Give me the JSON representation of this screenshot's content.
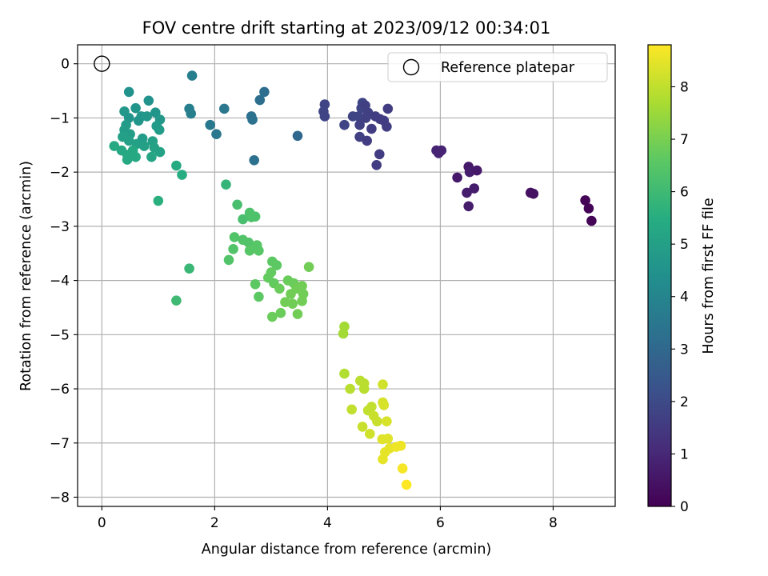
{
  "chart_data": {
    "type": "scatter",
    "title": "FOV centre drift starting at 2023/09/12 00:34:01",
    "xlabel": "Angular distance from reference (arcmin)",
    "ylabel": "Rotation from reference (arcmin)",
    "xlim": [
      -0.43,
      9.1
    ],
    "ylim": [
      -8.17,
      0.35
    ],
    "xticks": [
      0,
      2,
      4,
      6,
      8
    ],
    "yticks": [
      0,
      -1,
      -2,
      -3,
      -4,
      -5,
      -6,
      -7,
      -8
    ],
    "grid": true,
    "legend": {
      "position": "top-right",
      "entries": [
        "Reference platepar"
      ]
    },
    "reference_point": {
      "x": 0,
      "y": 0
    },
    "colorbar": {
      "label": "Hours from first FF file",
      "range": [
        0,
        8.8
      ],
      "ticks": [
        0,
        1,
        2,
        3,
        4,
        5,
        6,
        7,
        8
      ],
      "colormap": "viridis"
    },
    "points": [
      {
        "x": 8.57,
        "y": -2.52,
        "t": 0.1
      },
      {
        "x": 8.63,
        "y": -2.67,
        "t": 0.1
      },
      {
        "x": 8.68,
        "y": -2.9,
        "t": 0.1
      },
      {
        "x": 7.6,
        "y": -2.38,
        "t": 0.4
      },
      {
        "x": 7.65,
        "y": -2.4,
        "t": 0.4
      },
      {
        "x": 6.3,
        "y": -2.1,
        "t": 0.6
      },
      {
        "x": 6.5,
        "y": -1.9,
        "t": 0.6
      },
      {
        "x": 6.52,
        "y": -2.0,
        "t": 0.7
      },
      {
        "x": 6.65,
        "y": -1.97,
        "t": 0.6
      },
      {
        "x": 6.47,
        "y": -2.38,
        "t": 0.7
      },
      {
        "x": 6.6,
        "y": -2.3,
        "t": 0.7
      },
      {
        "x": 6.5,
        "y": -2.63,
        "t": 0.7
      },
      {
        "x": 5.93,
        "y": -1.6,
        "t": 0.9
      },
      {
        "x": 5.97,
        "y": -1.65,
        "t": 0.9
      },
      {
        "x": 6.02,
        "y": -1.6,
        "t": 0.9
      },
      {
        "x": 3.95,
        "y": -0.75,
        "t": 1.8
      },
      {
        "x": 3.93,
        "y": -0.88,
        "t": 1.8
      },
      {
        "x": 3.95,
        "y": -0.97,
        "t": 1.8
      },
      {
        "x": 4.3,
        "y": -1.13,
        "t": 1.8
      },
      {
        "x": 4.45,
        "y": -0.97,
        "t": 1.8
      },
      {
        "x": 4.55,
        "y": -0.97,
        "t": 1.8
      },
      {
        "x": 4.57,
        "y": -1.13,
        "t": 1.7
      },
      {
        "x": 4.6,
        "y": -0.82,
        "t": 1.8
      },
      {
        "x": 4.62,
        "y": -0.72,
        "t": 1.8
      },
      {
        "x": 4.67,
        "y": -0.77,
        "t": 1.7
      },
      {
        "x": 4.72,
        "y": -0.9,
        "t": 1.7
      },
      {
        "x": 4.68,
        "y": -1.0,
        "t": 1.7
      },
      {
        "x": 4.78,
        "y": -1.2,
        "t": 1.6
      },
      {
        "x": 4.85,
        "y": -0.97,
        "t": 1.6
      },
      {
        "x": 4.93,
        "y": -1.02,
        "t": 1.6
      },
      {
        "x": 5.0,
        "y": -1.05,
        "t": 1.6
      },
      {
        "x": 5.05,
        "y": -1.16,
        "t": 1.6
      },
      {
        "x": 5.07,
        "y": -0.83,
        "t": 1.6
      },
      {
        "x": 4.57,
        "y": -1.35,
        "t": 1.7
      },
      {
        "x": 4.7,
        "y": -1.42,
        "t": 1.6
      },
      {
        "x": 4.92,
        "y": -1.67,
        "t": 1.6
      },
      {
        "x": 4.87,
        "y": -1.87,
        "t": 1.6
      },
      {
        "x": 3.47,
        "y": -1.33,
        "t": 3.0
      },
      {
        "x": 2.88,
        "y": -0.52,
        "t": 3.2
      },
      {
        "x": 2.8,
        "y": -0.67,
        "t": 3.2
      },
      {
        "x": 2.65,
        "y": -0.97,
        "t": 3.3
      },
      {
        "x": 2.67,
        "y": -1.03,
        "t": 3.3
      },
      {
        "x": 2.7,
        "y": -1.78,
        "t": 3.3
      },
      {
        "x": 2.17,
        "y": -0.83,
        "t": 3.5
      },
      {
        "x": 2.03,
        "y": -1.3,
        "t": 3.5
      },
      {
        "x": 1.92,
        "y": -1.13,
        "t": 3.6
      },
      {
        "x": 1.6,
        "y": -0.22,
        "t": 3.8
      },
      {
        "x": 1.55,
        "y": -0.83,
        "t": 3.8
      },
      {
        "x": 1.58,
        "y": -0.92,
        "t": 3.8
      },
      {
        "x": 0.48,
        "y": -0.52,
        "t": 4.5
      },
      {
        "x": 0.4,
        "y": -0.88,
        "t": 4.7
      },
      {
        "x": 0.48,
        "y": -1.0,
        "t": 4.6
      },
      {
        "x": 0.6,
        "y": -0.82,
        "t": 4.6
      },
      {
        "x": 0.65,
        "y": -1.05,
        "t": 4.6
      },
      {
        "x": 0.7,
        "y": -0.97,
        "t": 4.6
      },
      {
        "x": 0.8,
        "y": -0.97,
        "t": 4.7
      },
      {
        "x": 0.83,
        "y": -0.68,
        "t": 4.5
      },
      {
        "x": 0.95,
        "y": -0.9,
        "t": 4.6
      },
      {
        "x": 1.03,
        "y": -1.03,
        "t": 4.7
      },
      {
        "x": 0.97,
        "y": -1.15,
        "t": 4.8
      },
      {
        "x": 1.02,
        "y": -1.22,
        "t": 4.8
      },
      {
        "x": 0.43,
        "y": -1.13,
        "t": 4.8
      },
      {
        "x": 0.4,
        "y": -1.22,
        "t": 4.9
      },
      {
        "x": 0.5,
        "y": -1.3,
        "t": 4.9
      },
      {
        "x": 0.37,
        "y": -1.35,
        "t": 5.0
      },
      {
        "x": 0.48,
        "y": -1.42,
        "t": 5.0
      },
      {
        "x": 0.62,
        "y": -1.48,
        "t": 5.0
      },
      {
        "x": 0.72,
        "y": -1.38,
        "t": 4.9
      },
      {
        "x": 0.75,
        "y": -1.52,
        "t": 5.0
      },
      {
        "x": 0.9,
        "y": -1.43,
        "t": 5.0
      },
      {
        "x": 0.93,
        "y": -1.55,
        "t": 5.1
      },
      {
        "x": 1.03,
        "y": -1.63,
        "t": 5.1
      },
      {
        "x": 0.88,
        "y": -1.72,
        "t": 5.2
      },
      {
        "x": 0.22,
        "y": -1.52,
        "t": 5.3
      },
      {
        "x": 0.35,
        "y": -1.6,
        "t": 5.3
      },
      {
        "x": 0.45,
        "y": -1.68,
        "t": 5.3
      },
      {
        "x": 0.55,
        "y": -1.6,
        "t": 5.3
      },
      {
        "x": 0.6,
        "y": -1.72,
        "t": 5.3
      },
      {
        "x": 0.45,
        "y": -1.77,
        "t": 5.3
      },
      {
        "x": 1.32,
        "y": -1.88,
        "t": 5.4
      },
      {
        "x": 1.42,
        "y": -2.05,
        "t": 5.5
      },
      {
        "x": 1.0,
        "y": -2.53,
        "t": 5.6
      },
      {
        "x": 2.2,
        "y": -2.23,
        "t": 5.8
      },
      {
        "x": 1.55,
        "y": -3.78,
        "t": 5.9
      },
      {
        "x": 1.32,
        "y": -4.37,
        "t": 6.0
      },
      {
        "x": 2.4,
        "y": -2.6,
        "t": 6.2
      },
      {
        "x": 2.5,
        "y": -2.87,
        "t": 6.2
      },
      {
        "x": 2.62,
        "y": -2.75,
        "t": 6.3
      },
      {
        "x": 2.65,
        "y": -2.83,
        "t": 6.3
      },
      {
        "x": 2.72,
        "y": -2.82,
        "t": 6.3
      },
      {
        "x": 2.35,
        "y": -3.2,
        "t": 6.4
      },
      {
        "x": 2.5,
        "y": -3.25,
        "t": 6.4
      },
      {
        "x": 2.6,
        "y": -3.3,
        "t": 6.4
      },
      {
        "x": 2.33,
        "y": -3.42,
        "t": 6.4
      },
      {
        "x": 2.25,
        "y": -3.62,
        "t": 6.4
      },
      {
        "x": 2.62,
        "y": -3.45,
        "t": 6.5
      },
      {
        "x": 2.75,
        "y": -3.35,
        "t": 6.5
      },
      {
        "x": 2.78,
        "y": -3.45,
        "t": 6.5
      },
      {
        "x": 3.02,
        "y": -3.65,
        "t": 6.6
      },
      {
        "x": 3.1,
        "y": -3.72,
        "t": 6.6
      },
      {
        "x": 3.0,
        "y": -3.85,
        "t": 6.7
      },
      {
        "x": 2.95,
        "y": -3.95,
        "t": 6.7
      },
      {
        "x": 3.05,
        "y": -4.05,
        "t": 6.7
      },
      {
        "x": 2.72,
        "y": -4.07,
        "t": 6.6
      },
      {
        "x": 2.78,
        "y": -4.3,
        "t": 6.6
      },
      {
        "x": 3.15,
        "y": -4.15,
        "t": 6.8
      },
      {
        "x": 3.3,
        "y": -4.0,
        "t": 6.8
      },
      {
        "x": 3.4,
        "y": -4.05,
        "t": 6.8
      },
      {
        "x": 3.45,
        "y": -4.15,
        "t": 6.9
      },
      {
        "x": 3.35,
        "y": -4.25,
        "t": 6.9
      },
      {
        "x": 3.25,
        "y": -4.4,
        "t": 6.9
      },
      {
        "x": 3.38,
        "y": -4.43,
        "t": 6.9
      },
      {
        "x": 3.55,
        "y": -4.1,
        "t": 6.9
      },
      {
        "x": 3.57,
        "y": -4.25,
        "t": 6.9
      },
      {
        "x": 3.55,
        "y": -4.38,
        "t": 6.9
      },
      {
        "x": 3.47,
        "y": -4.62,
        "t": 6.9
      },
      {
        "x": 3.17,
        "y": -4.6,
        "t": 6.8
      },
      {
        "x": 3.02,
        "y": -4.67,
        "t": 6.8
      },
      {
        "x": 3.67,
        "y": -3.75,
        "t": 6.9
      },
      {
        "x": 4.3,
        "y": -4.85,
        "t": 7.6
      },
      {
        "x": 4.28,
        "y": -4.98,
        "t": 7.6
      },
      {
        "x": 4.3,
        "y": -5.72,
        "t": 7.8
      },
      {
        "x": 4.58,
        "y": -5.85,
        "t": 7.9
      },
      {
        "x": 4.65,
        "y": -5.9,
        "t": 7.9
      },
      {
        "x": 4.65,
        "y": -6.0,
        "t": 7.9
      },
      {
        "x": 4.4,
        "y": -6.0,
        "t": 7.9
      },
      {
        "x": 4.43,
        "y": -6.38,
        "t": 8.0
      },
      {
        "x": 4.72,
        "y": -6.4,
        "t": 8.0
      },
      {
        "x": 4.78,
        "y": -6.33,
        "t": 8.0
      },
      {
        "x": 4.82,
        "y": -6.5,
        "t": 8.1
      },
      {
        "x": 4.88,
        "y": -6.6,
        "t": 8.1
      },
      {
        "x": 4.62,
        "y": -6.7,
        "t": 8.1
      },
      {
        "x": 4.75,
        "y": -6.83,
        "t": 8.2
      },
      {
        "x": 4.98,
        "y": -5.92,
        "t": 8.2
      },
      {
        "x": 4.98,
        "y": -6.25,
        "t": 8.3
      },
      {
        "x": 5.0,
        "y": -6.3,
        "t": 8.3
      },
      {
        "x": 5.05,
        "y": -6.6,
        "t": 8.3
      },
      {
        "x": 4.97,
        "y": -6.93,
        "t": 8.4
      },
      {
        "x": 5.07,
        "y": -6.92,
        "t": 8.4
      },
      {
        "x": 5.02,
        "y": -7.17,
        "t": 8.5
      },
      {
        "x": 4.98,
        "y": -7.3,
        "t": 8.5
      },
      {
        "x": 5.1,
        "y": -7.1,
        "t": 8.5
      },
      {
        "x": 5.22,
        "y": -7.07,
        "t": 8.6
      },
      {
        "x": 5.3,
        "y": -7.05,
        "t": 8.6
      },
      {
        "x": 5.33,
        "y": -7.47,
        "t": 8.7
      },
      {
        "x": 5.4,
        "y": -7.77,
        "t": 8.8
      }
    ]
  }
}
